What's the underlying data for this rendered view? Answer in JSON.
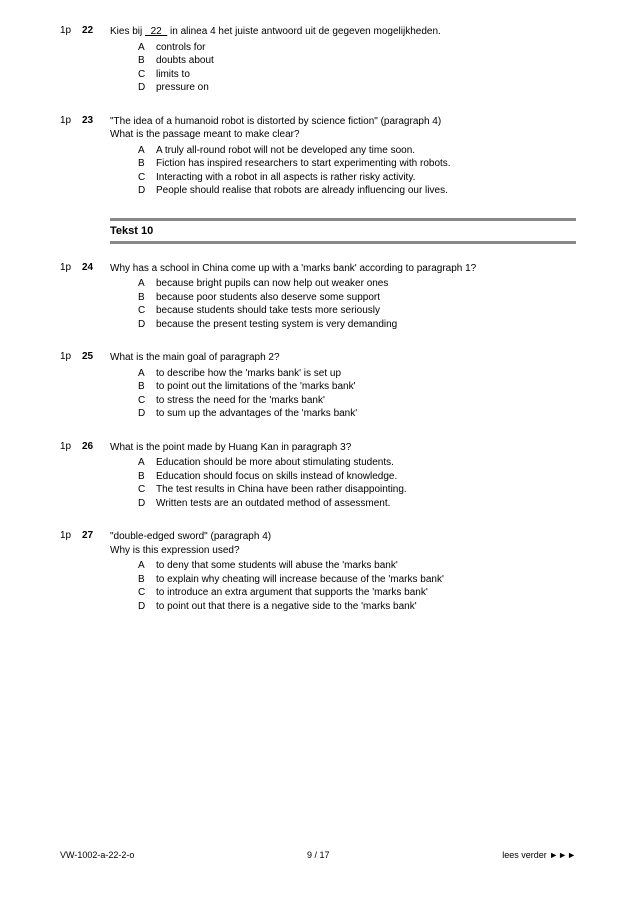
{
  "questions": [
    {
      "marker": "1p",
      "num": "22",
      "prompt": "Kies bij <span class='blank'>&nbsp;&nbsp;22&nbsp;&nbsp;</span> in alinea 4 het juiste antwoord uit de gegeven mogelijkheden.",
      "options": [
        {
          "l": "A",
          "t": "controls for"
        },
        {
          "l": "B",
          "t": "doubts about"
        },
        {
          "l": "C",
          "t": "limits to"
        },
        {
          "l": "D",
          "t": "pressure on"
        }
      ]
    },
    {
      "marker": "1p",
      "num": "23",
      "prompt": "\"The idea of a humanoid robot is distorted by science fiction\" (paragraph 4)<br>What is the passage meant to make clear?",
      "options": [
        {
          "l": "A",
          "t": "A truly all-round robot will not be developed any time soon."
        },
        {
          "l": "B",
          "t": "Fiction has inspired researchers to start experimenting with robots."
        },
        {
          "l": "C",
          "t": "Interacting with a robot in all aspects is rather risky activity."
        },
        {
          "l": "D",
          "t": "People should realise that robots are already influencing our lives."
        }
      ]
    }
  ],
  "section": "Tekst 10",
  "questions2": [
    {
      "marker": "1p",
      "num": "24",
      "prompt": "Why has a school in China come up with a 'marks bank' according to paragraph 1?",
      "options": [
        {
          "l": "A",
          "t": "because bright pupils can now help out weaker ones"
        },
        {
          "l": "B",
          "t": "because poor students also deserve some support"
        },
        {
          "l": "C",
          "t": "because students should take tests more seriously"
        },
        {
          "l": "D",
          "t": "because the present testing system is very demanding"
        }
      ]
    },
    {
      "marker": "1p",
      "num": "25",
      "prompt": "What is the main goal of paragraph 2?",
      "options": [
        {
          "l": "A",
          "t": "to describe how the 'marks bank' is set up"
        },
        {
          "l": "B",
          "t": "to point out the limitations of the 'marks bank'"
        },
        {
          "l": "C",
          "t": "to stress the need for the 'marks bank'"
        },
        {
          "l": "D",
          "t": "to sum up the advantages of the 'marks bank'"
        }
      ]
    },
    {
      "marker": "1p",
      "num": "26",
      "prompt": "What is the point made by Huang Kan in paragraph 3?",
      "options": [
        {
          "l": "A",
          "t": "Education should be more about stimulating students."
        },
        {
          "l": "B",
          "t": "Education should focus on skills instead of knowledge."
        },
        {
          "l": "C",
          "t": "The test results in China have been rather disappointing."
        },
        {
          "l": "D",
          "t": "Written tests are an outdated method of assessment."
        }
      ]
    },
    {
      "marker": "1p",
      "num": "27",
      "prompt": "\"double-edged sword\" (paragraph 4)<br>Why is this expression used?",
      "options": [
        {
          "l": "A",
          "t": "to deny that some students will abuse the 'marks bank'"
        },
        {
          "l": "B",
          "t": "to explain why cheating will increase because of the 'marks bank'"
        },
        {
          "l": "C",
          "t": "to introduce an extra argument that supports the 'marks bank'"
        },
        {
          "l": "D",
          "t": "to point out that there is a negative side to the 'marks bank'"
        }
      ]
    }
  ],
  "footer": {
    "left": "VW-1002-a-22-2-o",
    "center": "9 / 17",
    "right": "lees verder ►►►"
  }
}
